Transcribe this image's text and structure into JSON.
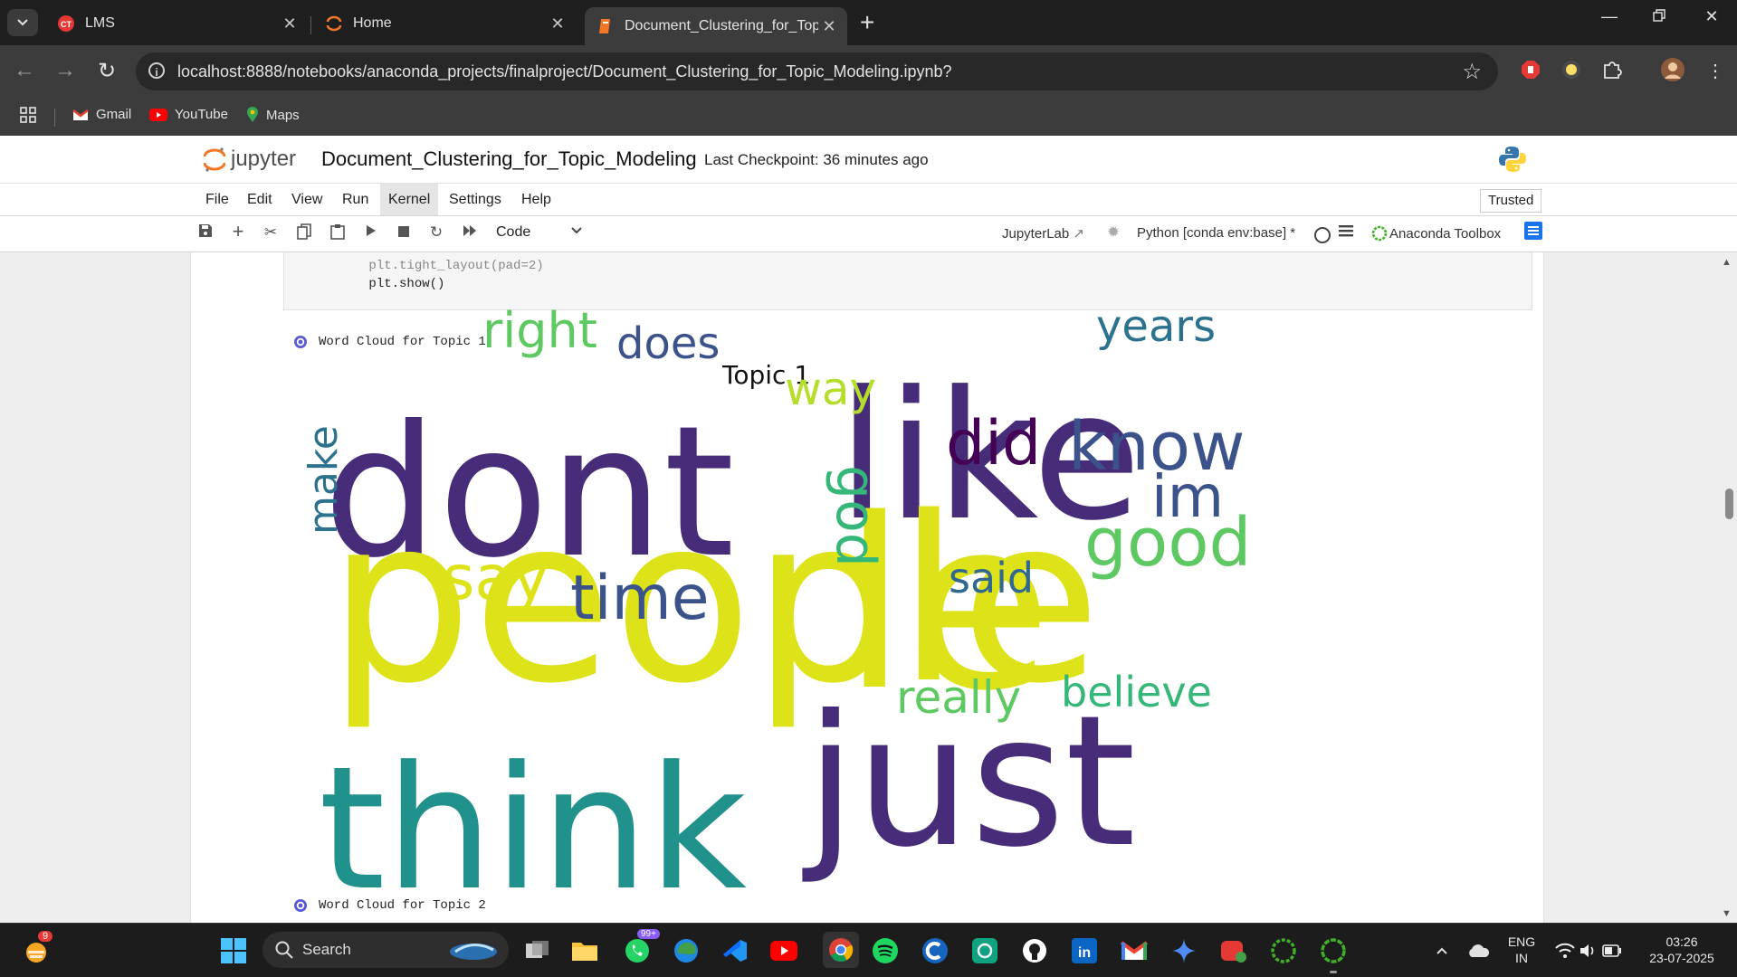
{
  "browser": {
    "tabs": [
      {
        "title": "LMS",
        "active": false,
        "icon": "lms-icon"
      },
      {
        "title": "Home",
        "active": false,
        "icon": "jupyter-icon"
      },
      {
        "title": "Document_Clustering_for_Topic",
        "active": true,
        "icon": "notebook-icon"
      }
    ],
    "url": "localhost:8888/notebooks/anaconda_projects/finalproject/Document_Clustering_for_Topic_Modeling.ipynb?",
    "bookmarks": [
      {
        "label": "Gmail",
        "icon": "gmail-icon"
      },
      {
        "label": "YouTube",
        "icon": "youtube-icon"
      },
      {
        "label": "Maps",
        "icon": "maps-icon"
      }
    ]
  },
  "jupyter": {
    "logo_text": "jupyter",
    "notebook_name": "Document_Clustering_for_Topic_Modeling",
    "checkpoint": "Last Checkpoint: 36 minutes ago",
    "menu": [
      "File",
      "Edit",
      "View",
      "Run",
      "Kernel",
      "Settings",
      "Help"
    ],
    "active_menu": "Kernel",
    "trusted": "Trusted",
    "cell_type": "Code",
    "jupyterlab_link": "JupyterLab",
    "kernel": "Python [conda env:base] *",
    "anaconda_toolbox": "Anaconda Toolbox"
  },
  "notebook": {
    "code_lines": [
      "plt.tight_layout(pad=2)",
      "plt.show()"
    ],
    "outputs": [
      {
        "label": "Word Cloud for Topic 1"
      },
      {
        "label": "Word Cloud for Topic 2"
      }
    ],
    "wordcloud": {
      "title": "Topic 1",
      "words": [
        {
          "text": "dont",
          "color": "#472c7a"
        },
        {
          "text": "like",
          "color": "#472c7a"
        },
        {
          "text": "people",
          "color": "#dde318"
        },
        {
          "text": "le",
          "color": "#dde318"
        },
        {
          "text": "think",
          "color": "#21918c"
        },
        {
          "text": "just",
          "color": "#472c7a"
        },
        {
          "text": "right",
          "color": "#5ec962"
        },
        {
          "text": "does",
          "color": "#3b528b"
        },
        {
          "text": "years",
          "color": "#2c728e"
        },
        {
          "text": "way",
          "color": "#b5de2b"
        },
        {
          "text": "did",
          "color": "#440154"
        },
        {
          "text": "know",
          "color": "#3b528b"
        },
        {
          "text": "im",
          "color": "#3b528b"
        },
        {
          "text": "make",
          "color": "#2c728e"
        },
        {
          "text": "god",
          "color": "#35b779"
        },
        {
          "text": "good",
          "color": "#5ec962"
        },
        {
          "text": "say",
          "color": "#dde318"
        },
        {
          "text": "time",
          "color": "#3b528b"
        },
        {
          "text": "said",
          "color": "#31688e"
        },
        {
          "text": "really",
          "color": "#5ec962"
        },
        {
          "text": "believe",
          "color": "#35b779"
        }
      ]
    }
  },
  "taskbar": {
    "notification_count": "9",
    "search_label": "Search",
    "whatsapp_badge": "99+",
    "language": "ENG",
    "region": "IN",
    "time": "03:26",
    "date": "23-07-2025"
  }
}
